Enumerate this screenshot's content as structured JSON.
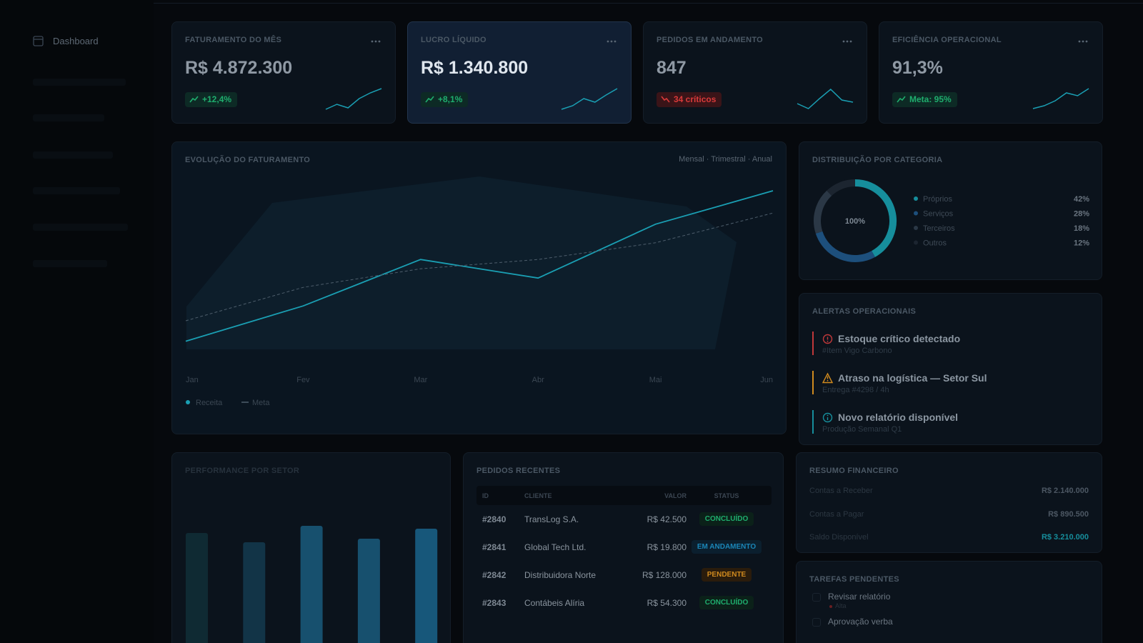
{
  "sidebar": {
    "active_item": "Dashboard"
  },
  "kpis": [
    {
      "title": "FATURAMENTO DO MÊS",
      "value": "R$ 4.872.300",
      "badge": "+12,4%",
      "trend": "up",
      "spark": [
        2,
        9,
        4,
        17,
        25,
        31
      ]
    },
    {
      "title": "LUCRO LÍQUIDO",
      "value": "R$ 1.340.800",
      "badge": "+8,1%",
      "trend": "up",
      "spark": [
        2,
        7,
        17,
        12,
        22,
        31
      ]
    },
    {
      "title": "PEDIDOS EM ANDAMENTO",
      "value": "847",
      "badge": "34 críticos",
      "trend": "down",
      "spark": [
        10,
        3,
        17,
        30,
        15,
        12
      ]
    },
    {
      "title": "EFICIÊNCIA OPERACIONAL",
      "value": "91,3%",
      "badge": "Meta: 95%",
      "trend": "up",
      "spark": [
        3,
        7,
        14,
        25,
        21,
        31
      ]
    }
  ],
  "chart_data": [
    {
      "type": "line",
      "title": "EVOLUÇÃO DO FATURAMENTO",
      "periods": "Mensal · Trimestral · Anual",
      "categories": [
        "Jan",
        "Fev",
        "Mar",
        "Abr",
        "Mai",
        "Jun"
      ],
      "series": [
        {
          "name": "Receita",
          "color": "#1a9fb3",
          "dashed": false,
          "values": [
            9,
            28,
            53,
            43,
            72,
            90
          ]
        },
        {
          "name": "Meta",
          "color": "#4e5e6c",
          "dashed": true,
          "values": [
            20,
            38,
            48,
            53,
            62,
            78
          ]
        }
      ]
    },
    {
      "type": "pie",
      "title": "DISTRIBUIÇÃO POR CATEGORIA",
      "center_label": "100%",
      "categories": [
        "Próprios",
        "Serviços",
        "Terceiros",
        "Outros"
      ],
      "values": [
        42,
        28,
        18,
        12
      ],
      "value_labels": [
        "42%",
        "28%",
        "18%",
        "12%"
      ],
      "colors": [
        "#168e9c",
        "#1d4f7c",
        "#2b3846",
        "#1c2530"
      ]
    },
    {
      "type": "bar",
      "title": "PERFORMANCE POR SETOR",
      "categories": [
        null,
        null,
        null,
        null,
        null
      ],
      "values": [
        137,
        124,
        147,
        129,
        143
      ],
      "colors": [
        "#0f2a33",
        "#123447",
        "#17506e",
        "#17506e",
        "#17577a"
      ]
    }
  ],
  "alerts": {
    "title": "ALERTAS OPERACIONAIS",
    "items": [
      {
        "title": "Estoque crítico detectado",
        "detail": "#Item Vigo Carbono",
        "level": "critical"
      },
      {
        "title": "Atraso na logística — Setor Sul",
        "detail": "Entrega #4298 / 4h",
        "level": "warning"
      },
      {
        "title": "Novo relatório disponível",
        "detail": "Produção Semanal Q1",
        "level": "info"
      }
    ]
  },
  "orders": {
    "title": "PEDIDOS RECENTES",
    "columns": [
      "ID",
      "CLIENTE",
      "VALOR",
      "STATUS"
    ],
    "rows": [
      [
        "#2840",
        "TransLog S.A.",
        "R$ 42.500",
        "CONCLUÍDO"
      ],
      [
        "#2841",
        "Global Tech Ltd.",
        "R$ 19.800",
        "EM ANDAMENTO"
      ],
      [
        "#2842",
        "Distribuidora Norte",
        "R$ 128.000",
        "PENDENTE"
      ],
      [
        "#2843",
        "Contábeis Alíria",
        "R$ 54.300",
        "CONCLUÍDO"
      ]
    ],
    "status_tone": [
      "success",
      "info",
      "warning",
      "success"
    ]
  },
  "finance": {
    "title": "RESUMO FINANCEIRO",
    "rows": [
      {
        "label": "Contas a Receber",
        "value": "R$ 2.140.000",
        "highlight": false
      },
      {
        "label": "Contas a Pagar",
        "value": "R$ 890.500",
        "highlight": false
      },
      {
        "label": "Saldo Disponível",
        "value": "R$ 3.210.000",
        "highlight": true
      }
    ]
  },
  "tasks": {
    "title": "TAREFAS PENDENTES",
    "items": [
      {
        "title": "Revisar relatório",
        "priority": "Alta"
      },
      {
        "title": "Aprovação verba"
      }
    ]
  }
}
